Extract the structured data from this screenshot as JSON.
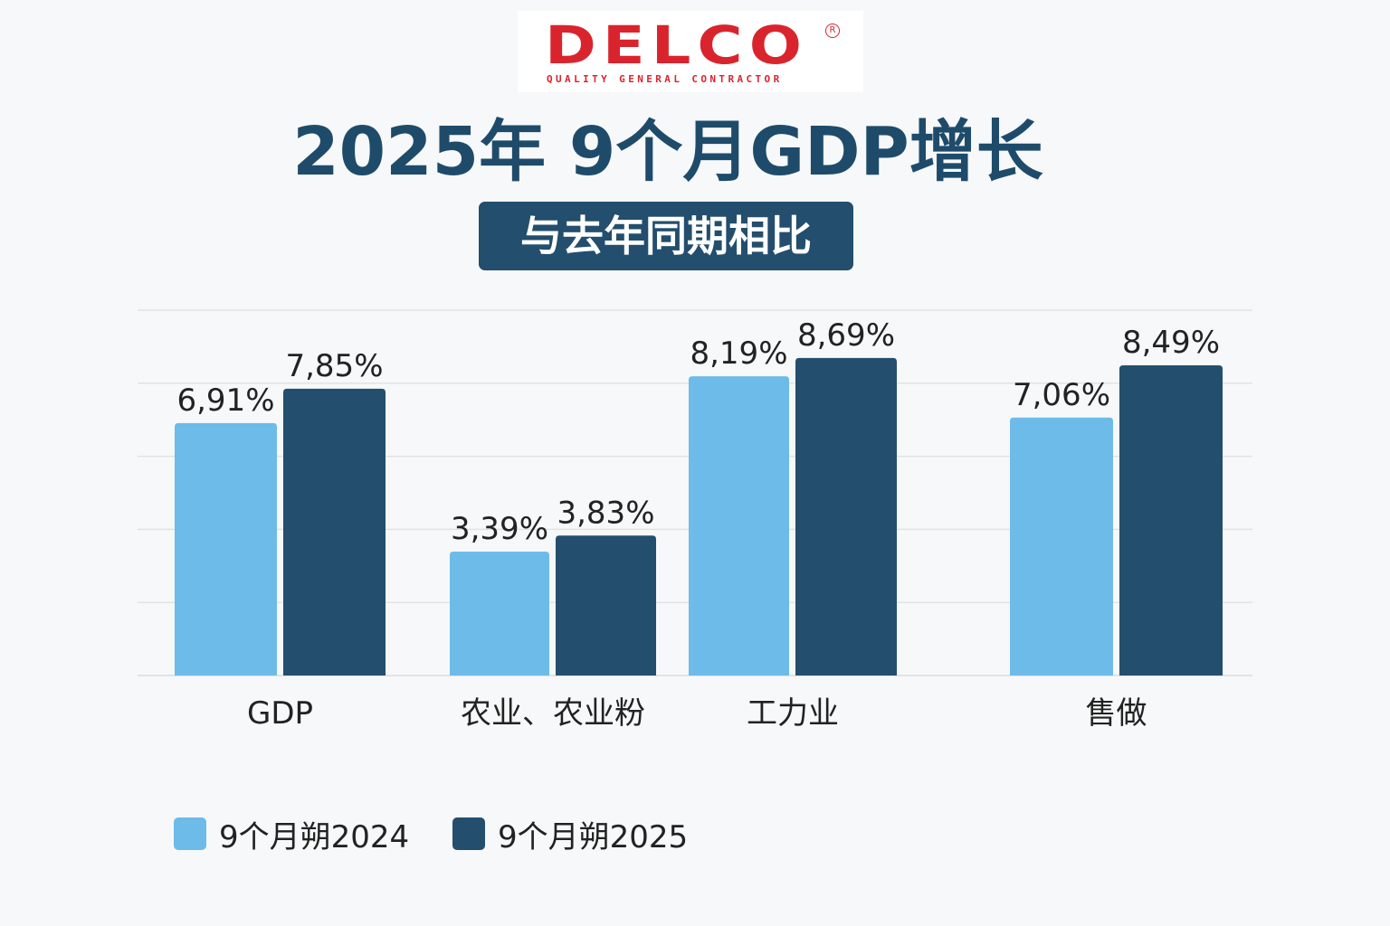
{
  "logo": {
    "word": "DELCO",
    "registered": "R",
    "tagline": "QUALITY GENERAL CONTRACTOR"
  },
  "colors": {
    "brand_red": "#d9242e",
    "title": "#1f4b6b",
    "subtitle_bg": "#234e6d",
    "series_2024": "#6dbbe8",
    "series_2025": "#234e6d",
    "grid": "#e1e3e5",
    "text": "#222222"
  },
  "chart_data": {
    "type": "bar",
    "title": "2025年 9个月GDP增长",
    "subtitle": "与去年同期相比",
    "categories": [
      "GDP",
      "农业、农业粉",
      "工力业",
      "售做"
    ],
    "series": [
      {
        "name": "9个月朔2024",
        "values": [
          6.91,
          3.39,
          8.19,
          7.06
        ],
        "labels": [
          "6,91%",
          "3,39%",
          "8,19%",
          "7,06%"
        ]
      },
      {
        "name": "9个月朔2025",
        "values": [
          7.85,
          3.83,
          8.69,
          8.49
        ],
        "labels": [
          "7,85%",
          "3,83%",
          "8,69%",
          "8,49%"
        ]
      }
    ],
    "xlabel": "",
    "ylabel": "",
    "ylim": [
      0,
      10
    ],
    "grid": true,
    "legend_position": "bottom-left"
  }
}
